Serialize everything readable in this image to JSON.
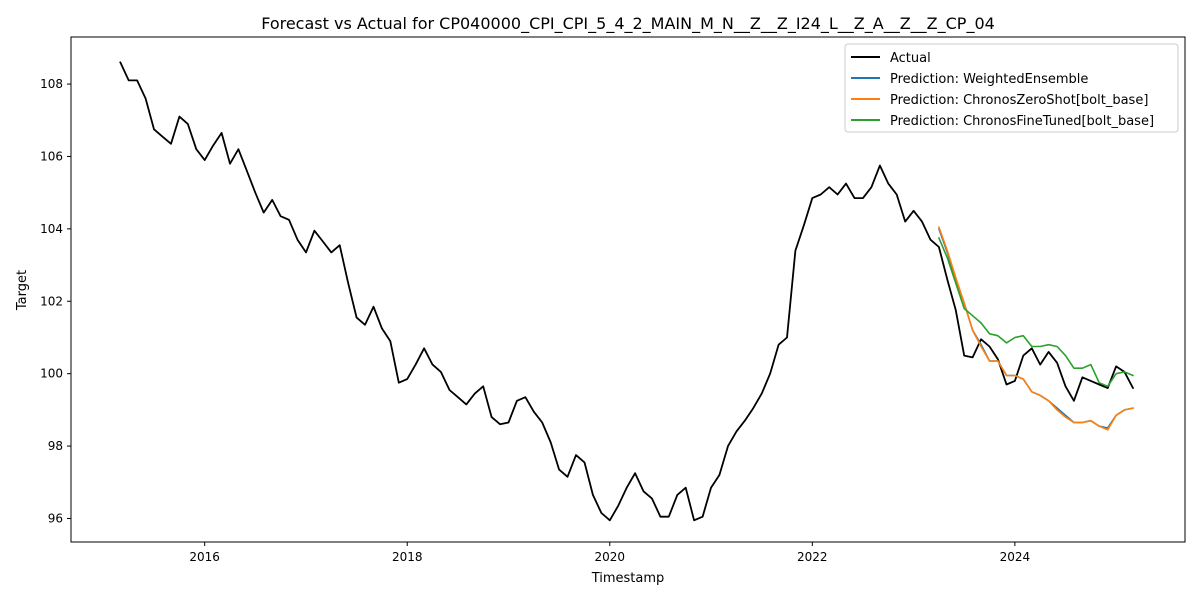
{
  "chart_data": {
    "type": "line",
    "title": "Forecast vs Actual for CP040000_CPI_CPI_5_4_2_MAIN_M_N__Z__Z_I24_L__Z_A__Z__Z_CP_04",
    "xlabel": "Timestamp",
    "ylabel": "Target",
    "xlim": [
      2014.68,
      2025.68
    ],
    "ylim": [
      95.35,
      109.3
    ],
    "x_ticks": [
      2016,
      2018,
      2020,
      2022,
      2024
    ],
    "x_tick_labels": [
      "2016",
      "2018",
      "2020",
      "2022",
      "2024"
    ],
    "y_ticks": [
      96,
      98,
      100,
      102,
      104,
      106,
      108
    ],
    "y_tick_labels": [
      "96",
      "98",
      "100",
      "102",
      "104",
      "106",
      "108"
    ],
    "grid": false,
    "legend_position": "top-right",
    "series": [
      {
        "name": "Actual",
        "color": "#000000",
        "x": [
          2015.167,
          2015.25,
          2015.333,
          2015.417,
          2015.5,
          2015.583,
          2015.667,
          2015.75,
          2015.833,
          2015.917,
          2016.0,
          2016.083,
          2016.167,
          2016.25,
          2016.333,
          2016.417,
          2016.5,
          2016.583,
          2016.667,
          2016.75,
          2016.833,
          2016.917,
          2017.0,
          2017.083,
          2017.167,
          2017.25,
          2017.333,
          2017.417,
          2017.5,
          2017.583,
          2017.667,
          2017.75,
          2017.833,
          2017.917,
          2018.0,
          2018.083,
          2018.167,
          2018.25,
          2018.333,
          2018.417,
          2018.5,
          2018.583,
          2018.667,
          2018.75,
          2018.833,
          2018.917,
          2019.0,
          2019.083,
          2019.167,
          2019.25,
          2019.333,
          2019.417,
          2019.5,
          2019.583,
          2019.667,
          2019.75,
          2019.833,
          2019.917,
          2020.0,
          2020.083,
          2020.167,
          2020.25,
          2020.333,
          2020.417,
          2020.5,
          2020.583,
          2020.667,
          2020.75,
          2020.833,
          2020.917,
          2021.0,
          2021.083,
          2021.167,
          2021.25,
          2021.333,
          2021.417,
          2021.5,
          2021.583,
          2021.667,
          2021.75,
          2021.833,
          2021.917,
          2022.0,
          2022.083,
          2022.167,
          2022.25,
          2022.333,
          2022.417,
          2022.5,
          2022.583,
          2022.667,
          2022.75,
          2022.833,
          2022.917,
          2023.0,
          2023.083,
          2023.167,
          2023.25,
          2023.333,
          2023.417,
          2023.5,
          2023.583,
          2023.667,
          2023.75,
          2023.833,
          2023.917,
          2024.0,
          2024.083,
          2024.167,
          2024.25,
          2024.333,
          2024.417,
          2024.5,
          2024.583,
          2024.667,
          2024.75,
          2024.833,
          2024.917,
          2025.0,
          2025.083,
          2025.167
        ],
        "values": [
          108.6,
          108.1,
          108.1,
          107.6,
          106.75,
          106.55,
          106.35,
          107.1,
          106.9,
          106.2,
          105.9,
          106.3,
          106.65,
          105.8,
          106.2,
          105.6,
          105.0,
          104.45,
          104.8,
          104.35,
          104.25,
          103.7,
          103.35,
          103.95,
          103.65,
          103.35,
          103.55,
          102.5,
          101.55,
          101.35,
          101.85,
          101.25,
          100.9,
          99.75,
          99.85,
          100.25,
          100.7,
          100.25,
          100.05,
          99.55,
          99.35,
          99.15,
          99.45,
          99.65,
          98.8,
          98.6,
          98.65,
          99.25,
          99.35,
          98.95,
          98.65,
          98.1,
          97.35,
          97.15,
          97.75,
          97.55,
          96.65,
          96.15,
          95.95,
          96.35,
          96.85,
          97.25,
          96.75,
          96.55,
          96.05,
          96.05,
          96.65,
          96.85,
          95.95,
          96.05,
          96.85,
          97.2,
          98.0,
          98.4,
          98.7,
          99.05,
          99.45,
          100.0,
          100.8,
          101.0,
          103.4,
          104.1,
          104.85,
          104.95,
          105.15,
          104.95,
          105.25,
          104.85,
          104.85,
          105.15,
          105.75,
          105.25,
          104.95,
          104.2,
          104.5,
          104.2,
          103.7,
          103.5,
          102.6,
          101.75,
          100.5,
          100.45,
          100.95,
          100.75,
          100.4,
          99.7,
          99.8,
          100.5,
          100.7,
          100.25,
          100.6,
          100.3,
          99.65,
          99.25,
          99.9,
          99.8,
          99.7,
          99.6,
          100.2,
          100.05,
          99.6
        ]
      },
      {
        "name": "Prediction: WeightedEnsemble",
        "color": "#1f77b4",
        "x": [
          2023.25,
          2023.333,
          2023.417,
          2023.5,
          2023.583,
          2023.667,
          2023.75,
          2023.833,
          2023.917,
          2024.0,
          2024.083,
          2024.167,
          2024.25,
          2024.333,
          2024.417,
          2024.5,
          2024.583,
          2024.667,
          2024.75,
          2024.833,
          2024.917,
          2025.0,
          2025.083,
          2025.167
        ],
        "values": [
          104.0,
          103.35,
          102.6,
          101.95,
          101.2,
          100.8,
          100.35,
          100.35,
          99.95,
          99.95,
          99.85,
          99.5,
          99.4,
          99.25,
          99.05,
          98.85,
          98.65,
          98.65,
          98.7,
          98.55,
          98.5,
          98.85,
          99.0,
          99.05
        ]
      },
      {
        "name": "Prediction: ChronosZeroShot[bolt_base]",
        "color": "#ff7f0e",
        "x": [
          2023.25,
          2023.333,
          2023.417,
          2023.5,
          2023.583,
          2023.667,
          2023.75,
          2023.833,
          2023.917,
          2024.0,
          2024.083,
          2024.167,
          2024.25,
          2024.333,
          2024.417,
          2024.5,
          2024.583,
          2024.667,
          2024.75,
          2024.833,
          2024.917,
          2025.0,
          2025.083,
          2025.167
        ],
        "values": [
          104.05,
          103.4,
          102.65,
          101.95,
          101.2,
          100.75,
          100.35,
          100.35,
          99.95,
          99.95,
          99.85,
          99.5,
          99.4,
          99.25,
          99.0,
          98.8,
          98.65,
          98.65,
          98.7,
          98.55,
          98.45,
          98.85,
          99.0,
          99.05
        ]
      },
      {
        "name": "Prediction: ChronosFineTuned[bolt_base]",
        "color": "#2ca02c",
        "x": [
          2023.25,
          2023.333,
          2023.417,
          2023.5,
          2023.583,
          2023.667,
          2023.75,
          2023.833,
          2023.917,
          2024.0,
          2024.083,
          2024.167,
          2024.25,
          2024.333,
          2024.417,
          2024.5,
          2024.583,
          2024.667,
          2024.75,
          2024.833,
          2024.917,
          2025.0,
          2025.083,
          2025.167
        ],
        "values": [
          103.75,
          103.2,
          102.5,
          101.8,
          101.6,
          101.4,
          101.1,
          101.05,
          100.85,
          101.0,
          101.05,
          100.75,
          100.75,
          100.8,
          100.75,
          100.5,
          100.15,
          100.15,
          100.25,
          99.75,
          99.65,
          100.0,
          100.05,
          99.95
        ]
      }
    ]
  }
}
